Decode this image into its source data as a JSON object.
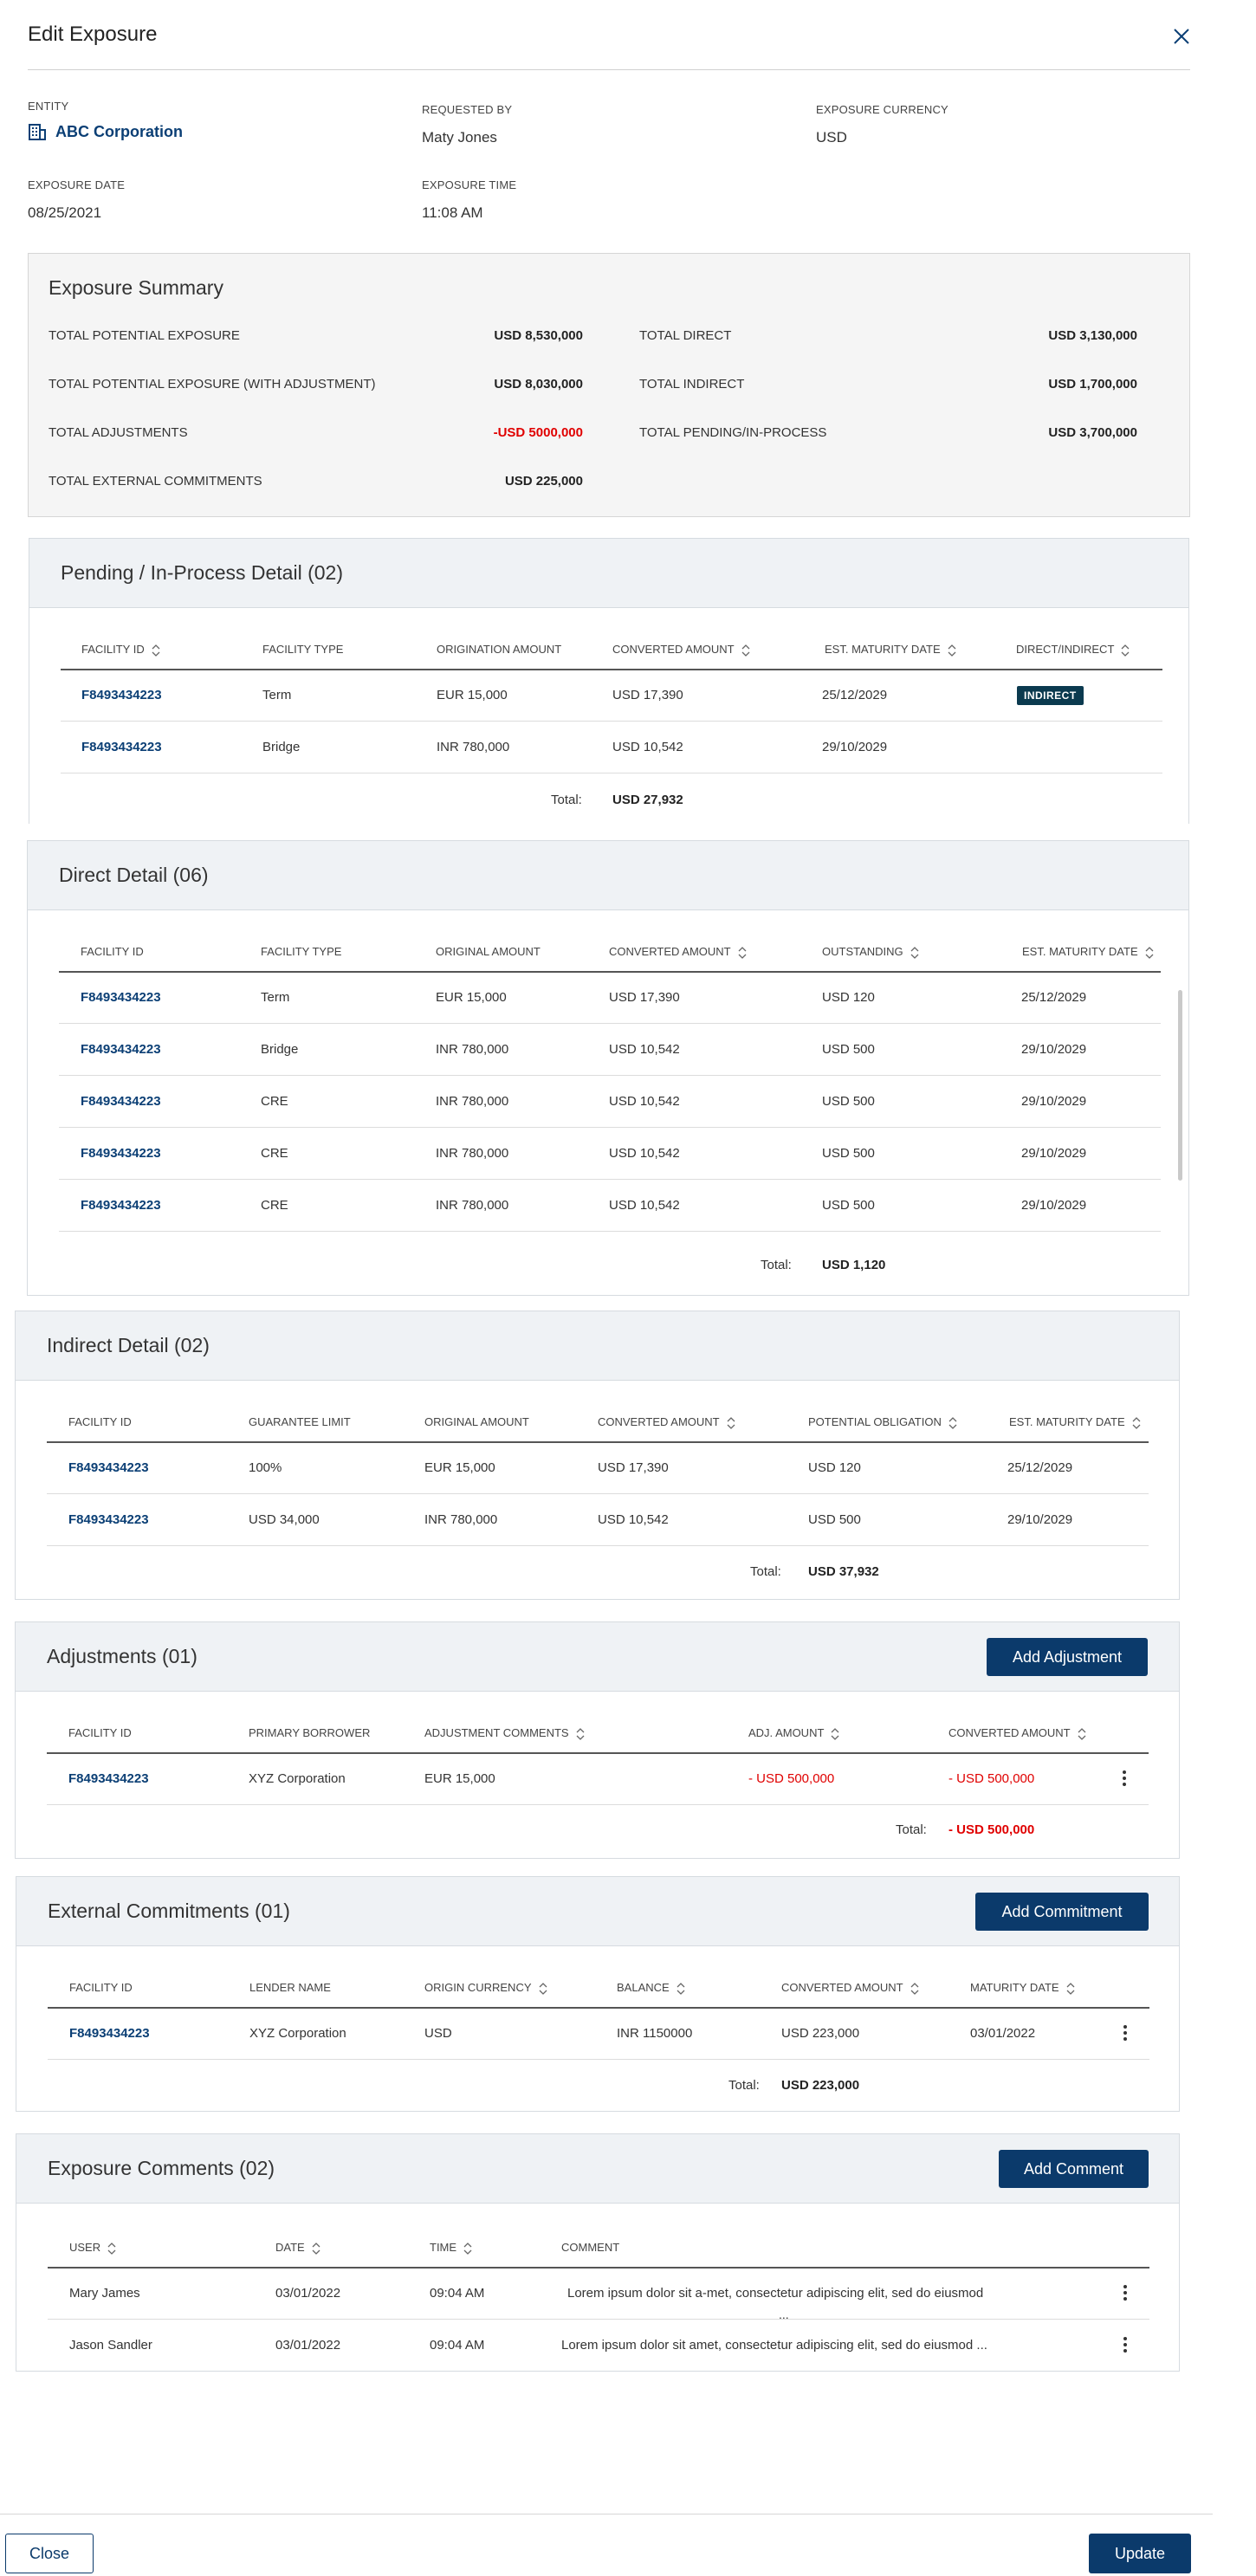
{
  "header": {
    "title": "Edit Exposure"
  },
  "meta": {
    "entity_label": "ENTITY",
    "entity_value": "ABC Corporation",
    "requested_by_label": "REQUESTED BY",
    "requested_by_value": "Maty Jones",
    "currency_label": "EXPOSURE CURRENCY",
    "currency_value": "USD",
    "date_label": "EXPOSURE DATE",
    "date_value": "08/25/2021",
    "time_label": "EXPOSURE TIME",
    "time_value": "11:08 AM"
  },
  "summary": {
    "title": "Exposure Summary",
    "items": [
      {
        "label": "TOTAL POTENTIAL EXPOSURE",
        "value": "USD 8,530,000"
      },
      {
        "label": "TOTAL POTENTIAL EXPOSURE (WITH ADJUSTMENT)",
        "value": "USD 8,030,000"
      },
      {
        "label": "TOTAL ADJUSTMENTS",
        "value": "-USD 5000,000"
      },
      {
        "label": "TOTAL EXTERNAL COMMITMENTS",
        "value": "USD 225,000"
      },
      {
        "label": "TOTAL DIRECT",
        "value": "USD 3,130,000"
      },
      {
        "label": "TOTAL INDIRECT",
        "value": "USD 1,700,000"
      },
      {
        "label": "TOTAL PENDING/IN-PROCESS",
        "value": "USD 3,700,000"
      }
    ]
  },
  "pending": {
    "title": "Pending / In-Process Detail (02)",
    "columns": [
      "FACILITY ID",
      "FACILITY TYPE",
      "ORIGINATION AMOUNT",
      "CONVERTED AMOUNT",
      "EST. MATURITY DATE",
      "DIRECT/INDIRECT"
    ],
    "rows": [
      [
        "F8493434223",
        "Term",
        "EUR 15,000",
        "USD 17,390",
        "25/12/2029",
        "INDIRECT"
      ],
      [
        "F8493434223",
        "Bridge",
        "INR  780,000",
        "USD 10,542",
        "29/10/2029",
        ""
      ]
    ],
    "total_label": "Total:",
    "total_value": "USD 27,932"
  },
  "direct": {
    "title": "Direct Detail (06)",
    "columns": [
      "FACILITY ID",
      "FACILITY TYPE",
      "ORIGINAL AMOUNT",
      "CONVERTED AMOUNT",
      "OUTSTANDING",
      "EST. MATURITY DATE"
    ],
    "rows": [
      [
        "F8493434223",
        "Term",
        "EUR 15,000",
        "USD 17,390",
        "USD 120",
        "25/12/2029"
      ],
      [
        "F8493434223",
        "Bridge",
        "INR  780,000",
        "USD 10,542",
        "USD 500",
        "29/10/2029"
      ],
      [
        "F8493434223",
        "CRE",
        "INR  780,000",
        "USD 10,542",
        "USD 500",
        "29/10/2029"
      ],
      [
        "F8493434223",
        "CRE",
        "INR  780,000",
        "USD 10,542",
        "USD 500",
        "29/10/2029"
      ],
      [
        "F8493434223",
        "CRE",
        "INR  780,000",
        "USD 10,542",
        "USD 500",
        "29/10/2029"
      ]
    ],
    "total_label": "Total:",
    "total_value": "USD 1,120"
  },
  "indirect": {
    "title": "Indirect Detail (02)",
    "columns": [
      "FACILITY ID",
      "GUARANTEE LIMIT",
      "ORIGINAL AMOUNT",
      "CONVERTED AMOUNT",
      "POTENTIAL OBLIGATION",
      "EST. MATURITY DATE"
    ],
    "rows": [
      [
        "F8493434223",
        "100%",
        "EUR 15,000",
        "USD 17,390",
        "USD 120",
        "25/12/2029"
      ],
      [
        "F8493434223",
        "USD 34,000",
        "INR  780,000",
        "USD 10,542",
        "USD 500",
        "29/10/2029"
      ]
    ],
    "total_label": "Total:",
    "total_value": "USD 37,932"
  },
  "adjustments": {
    "title": "Adjustments (01)",
    "button": "Add Adjustment",
    "columns": [
      "FACILITY ID",
      "PRIMARY BORROWER",
      "ADJUSTMENT COMMENTS",
      "ADJ. AMOUNT",
      "CONVERTED AMOUNT"
    ],
    "rows": [
      [
        "F8493434223",
        "XYZ Corporation",
        "EUR 15,000",
        "- USD 500,000",
        "- USD 500,000"
      ]
    ],
    "total_label": "Total:",
    "total_value": "- USD 500,000"
  },
  "commitments": {
    "title": "External Commitments (01)",
    "button": "Add Commitment",
    "columns": [
      "FACILITY ID",
      "LENDER NAME",
      "ORIGIN CURRENCY",
      "BALANCE",
      "CONVERTED AMOUNT",
      "MATURITY DATE"
    ],
    "rows": [
      [
        "F8493434223",
        "XYZ Corporation",
        "USD",
        "INR 1150000",
        "USD 223,000",
        "03/01/2022"
      ]
    ],
    "total_label": "Total:",
    "total_value": "USD 223,000"
  },
  "comments": {
    "title": "Exposure Comments (02)",
    "button": "Add Comment",
    "columns": [
      "USER",
      "DATE",
      "TIME",
      "COMMENT"
    ],
    "rows": [
      [
        "Mary James",
        "03/01/2022",
        "09:04 AM",
        "Lorem ipsum dolor sit a-met, consectetur adipiscing elit, sed do eiusmod",
        "..."
      ],
      [
        "Jason Sandler",
        "03/01/2022",
        "09:04 AM",
        "Lorem ipsum dolor sit amet, consectetur adipiscing elit, sed do eiusmod ...",
        ""
      ]
    ]
  },
  "footer": {
    "close": "Close",
    "update": "Update"
  },
  "colors": {
    "primary": "#0b3a6b",
    "link": "#0b3f75",
    "negative": "#e00000",
    "badge": "#0b3a4f"
  }
}
